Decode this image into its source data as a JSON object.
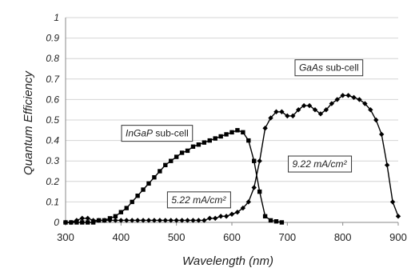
{
  "chart_data": {
    "type": "line",
    "xlabel": "Wavelength (nm)",
    "ylabel": "Quantum Efficiency",
    "xlim": [
      300,
      900
    ],
    "ylim": [
      0,
      1
    ],
    "xticks": [
      300,
      400,
      500,
      600,
      700,
      800,
      900
    ],
    "yticks": [
      0,
      0.1,
      0.2,
      0.3,
      0.4,
      0.5,
      0.6,
      0.7,
      0.8,
      0.9,
      1
    ],
    "grid": "horizontal",
    "series": [
      {
        "name": "InGaP sub-cell",
        "marker": "square",
        "color": "#000000",
        "x": [
          300,
          310,
          320,
          330,
          340,
          350,
          360,
          370,
          380,
          390,
          400,
          410,
          420,
          430,
          440,
          450,
          460,
          470,
          480,
          490,
          500,
          510,
          520,
          530,
          540,
          550,
          560,
          570,
          580,
          590,
          600,
          610,
          620,
          630,
          640,
          650,
          660,
          670,
          680,
          690
        ],
        "y": [
          0.0,
          0.0,
          0.0,
          0.0,
          0.0,
          0.0,
          0.01,
          0.01,
          0.02,
          0.03,
          0.05,
          0.07,
          0.1,
          0.13,
          0.16,
          0.19,
          0.22,
          0.25,
          0.28,
          0.3,
          0.32,
          0.34,
          0.35,
          0.37,
          0.38,
          0.39,
          0.4,
          0.41,
          0.42,
          0.43,
          0.44,
          0.45,
          0.44,
          0.4,
          0.3,
          0.15,
          0.03,
          0.01,
          0.005,
          0.0
        ]
      },
      {
        "name": "GaAs sub-cell",
        "marker": "diamond",
        "color": "#000000",
        "x": [
          300,
          310,
          320,
          330,
          340,
          350,
          360,
          370,
          380,
          390,
          400,
          410,
          420,
          430,
          440,
          450,
          460,
          470,
          480,
          490,
          500,
          510,
          520,
          530,
          540,
          550,
          560,
          570,
          580,
          590,
          600,
          610,
          620,
          630,
          640,
          650,
          660,
          670,
          680,
          690,
          700,
          710,
          720,
          730,
          740,
          750,
          760,
          770,
          780,
          790,
          800,
          810,
          820,
          830,
          840,
          850,
          860,
          870,
          880,
          890,
          900
        ],
        "y": [
          0.0,
          0.0,
          0.01,
          0.02,
          0.02,
          0.01,
          0.01,
          0.01,
          0.01,
          0.01,
          0.01,
          0.01,
          0.01,
          0.01,
          0.01,
          0.01,
          0.01,
          0.01,
          0.01,
          0.01,
          0.01,
          0.01,
          0.01,
          0.01,
          0.01,
          0.01,
          0.02,
          0.02,
          0.03,
          0.03,
          0.04,
          0.05,
          0.07,
          0.1,
          0.17,
          0.3,
          0.46,
          0.51,
          0.54,
          0.54,
          0.52,
          0.52,
          0.55,
          0.57,
          0.57,
          0.55,
          0.53,
          0.55,
          0.58,
          0.6,
          0.62,
          0.62,
          0.61,
          0.6,
          0.58,
          0.55,
          0.5,
          0.43,
          0.28,
          0.1,
          0.03
        ]
      }
    ],
    "annotations": [
      {
        "main": "InGaP",
        "suffix": " sub-cell",
        "x": 465,
        "y": 0.435
      },
      {
        "main": "GaAs",
        "suffix": " sub-cell",
        "x": 775,
        "y": 0.755
      },
      {
        "main": "5.22 mA/cm²",
        "suffix": "",
        "x": 540,
        "y": 0.11
      },
      {
        "main": "9.22 mA/cm²",
        "suffix": "",
        "x": 758,
        "y": 0.285
      }
    ]
  }
}
